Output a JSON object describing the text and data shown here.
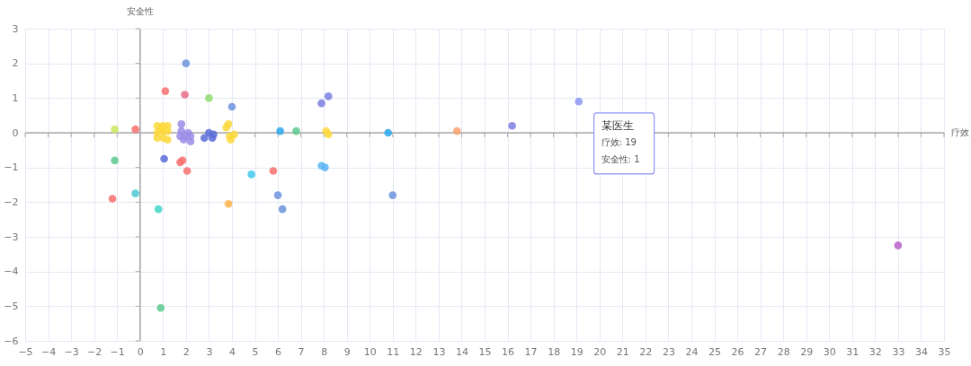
{
  "chart_data": {
    "type": "scatter",
    "xlabel": "疗效",
    "ylabel": "安全性",
    "xlim": [
      -5,
      35
    ],
    "xticks": [
      -5,
      -4,
      -3,
      -2,
      -1,
      0,
      1,
      2,
      3,
      4,
      5,
      6,
      7,
      8,
      9,
      10,
      11,
      12,
      13,
      14,
      15,
      16,
      17,
      18,
      19,
      20,
      21,
      22,
      23,
      24,
      25,
      26,
      27,
      28,
      29,
      30,
      31,
      32,
      33,
      34,
      35
    ],
    "ylim": [
      -6,
      3
    ],
    "yticks": [
      -6,
      -5,
      -4,
      -3,
      -2,
      -1,
      0,
      1,
      2,
      3
    ],
    "grid": true,
    "legend": false,
    "marker": "circle",
    "annotations": [
      "某医生",
      "疗效: 19",
      "安全性: 1"
    ],
    "series": [
      {
        "x": [
          -1.1,
          -0.2,
          -1.1,
          -1.2,
          -0.2,
          0.8,
          0.9,
          1.05,
          1.1,
          2.0,
          1.95,
          3.0,
          4.0,
          0.75,
          1.0,
          1.2,
          0.75,
          1.0,
          1.2,
          0.75,
          1.0,
          1.2,
          0.9,
          1.8,
          1.8,
          1.75,
          1.9,
          2.1,
          2.2,
          2.2,
          1.95,
          2.8,
          3.0,
          3.15,
          3.2,
          1.75,
          1.85,
          2.05,
          3.75,
          3.85,
          3.9,
          4.1,
          3.95,
          3.85,
          4.85,
          5.8,
          6.0,
          6.2,
          6.1,
          6.8,
          7.9,
          8.2,
          8.1,
          8.2,
          7.9,
          8.05,
          10.8,
          11.0,
          13.8,
          16.2,
          19.1,
          33.0
        ],
        "values": [
          0.1,
          0.1,
          -0.8,
          -1.9,
          -1.75,
          -2.2,
          -5.05,
          -0.75,
          1.2,
          2.0,
          1.1,
          1.0,
          0.75,
          0.2,
          0.2,
          0.2,
          0.0,
          0.05,
          0.05,
          -0.15,
          -0.15,
          -0.2,
          0.1,
          0.25,
          0.05,
          -0.1,
          -0.2,
          0.0,
          -0.1,
          -0.25,
          -0.1,
          -0.15,
          0.0,
          -0.15,
          -0.05,
          -0.85,
          -0.8,
          -1.1,
          0.15,
          0.25,
          -0.1,
          -0.05,
          -0.2,
          -2.05,
          -1.2,
          -1.1,
          -1.8,
          -2.2,
          0.05,
          0.05,
          0.85,
          1.05,
          0.05,
          -0.05,
          -0.95,
          -1.0,
          0.0,
          -1.8,
          0.05,
          0.2,
          0.9,
          -3.25
        ],
        "colors": [
          "#c8e65a",
          "#f7706e",
          "#5cc98e",
          "#f7706e",
          "#4ec9d0",
          "#3fd6c8",
          "#5cc98e",
          "#5b6bd8",
          "#f7706e",
          "#6b93dd",
          "#e86b8a",
          "#8fdc6e",
          "#6b93dd",
          "#fdd83a",
          "#fdd83a",
          "#fdd83a",
          "#fdd83a",
          "#fdd83a",
          "#fdd83a",
          "#fdd83a",
          "#fdd83a",
          "#fdd83a",
          "#fdd83a",
          "#9b8ce8",
          "#9b8ce8",
          "#9b8ce8",
          "#9b8ce8",
          "#9b8ce8",
          "#9b8ce8",
          "#9b8ce8",
          "#9b8ce8",
          "#5b6bd8",
          "#5b6bd8",
          "#5b6bd8",
          "#5b6bd8",
          "#f7706e",
          "#f7706e",
          "#f7706e",
          "#fdd83a",
          "#fdd83a",
          "#fdd83a",
          "#fdd83a",
          "#fdd83a",
          "#fbb14a",
          "#3ec8ee",
          "#f7706e",
          "#6b93dd",
          "#6b93dd",
          "#28a8ee",
          "#5cc98e",
          "#7b7fe0",
          "#7b7fe0",
          "#fdd83a",
          "#fdd83a",
          "#5cb6f5",
          "#5cb6f5",
          "#28a8ee",
          "#6b93dd",
          "#fca16d",
          "#7b7fe0",
          "#8e96f5",
          "#b860c8"
        ]
      }
    ]
  }
}
